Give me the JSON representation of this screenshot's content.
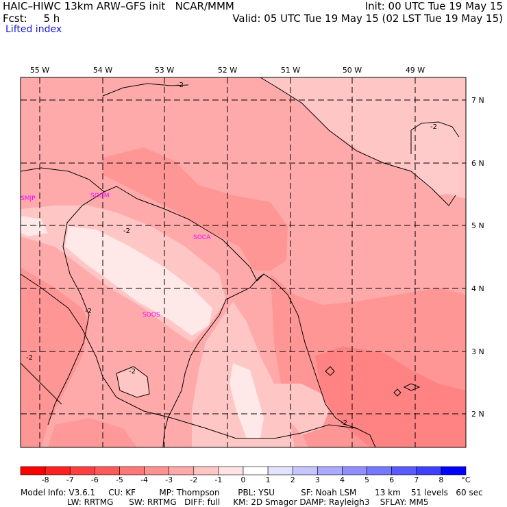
{
  "header": {
    "title_left": "HAIC–HIWC 13km ARW–GFS init   NCAR/MMM",
    "forecast": "Fcst:     5 h",
    "init": "Init: 00 UTC Tue 19 May 15",
    "valid": "Valid: 05 UTC Tue 19 May 15 (02 LST Tue 19 May 15)"
  },
  "field_name": "Lifted index",
  "longitude_labels": [
    "55 W",
    "54 W",
    "53 W",
    "52 W",
    "51 W",
    "50 W",
    "49 W"
  ],
  "latitude_labels": [
    "7 N",
    "6 N",
    "5 N",
    "4 N",
    "3 N",
    "2 N"
  ],
  "stations": [
    "SMJP",
    "SOGM",
    "SOCA",
    "SOOS"
  ],
  "contour_labels": [
    "-2",
    "-2",
    "-2",
    "-2",
    "-2",
    "-2",
    "-2"
  ],
  "colorbar": {
    "unit": "°C",
    "ticks": [
      "-8",
      "-7",
      "-6",
      "-5",
      "-4",
      "-3",
      "-2",
      "-1",
      "0",
      "1",
      "2",
      "3",
      "4",
      "5",
      "6",
      "7",
      "8"
    ],
    "colors": [
      "#ff0000",
      "#ff2020",
      "#ff3f3f",
      "#ff5a5a",
      "#ff7777",
      "#ff9191",
      "#ffaaaa",
      "#ffc6c6",
      "#ffe3e3",
      "#ffffff",
      "#e3e3ff",
      "#c6c6ff",
      "#aaaaff",
      "#8f8fff",
      "#7777ff",
      "#5a5aff",
      "#3f3fff",
      "#0000ff"
    ]
  },
  "colors": {
    "level_m4": "#ff7b7b",
    "level_m3": "#ff9999",
    "level_m2": "#ffaaaa",
    "level_m1": "#ffc6c6",
    "level_0": "#ffe3e3",
    "level_1": "#ffffff",
    "station": "#ff00ff",
    "label_blue": "#1515c8"
  },
  "footer": {
    "line1": "Model Info: V3.6.1     CU: KF         MP: Thompson       PBL: YSU          SF: Noah LSM       13 km    51 levels   60 sec",
    "line2": "LW: RRTMG      SW: RRTMG   DIFF: full     KM: 2D Smagor DAMP: Rayleigh3    SFLAY: MM5"
  }
}
